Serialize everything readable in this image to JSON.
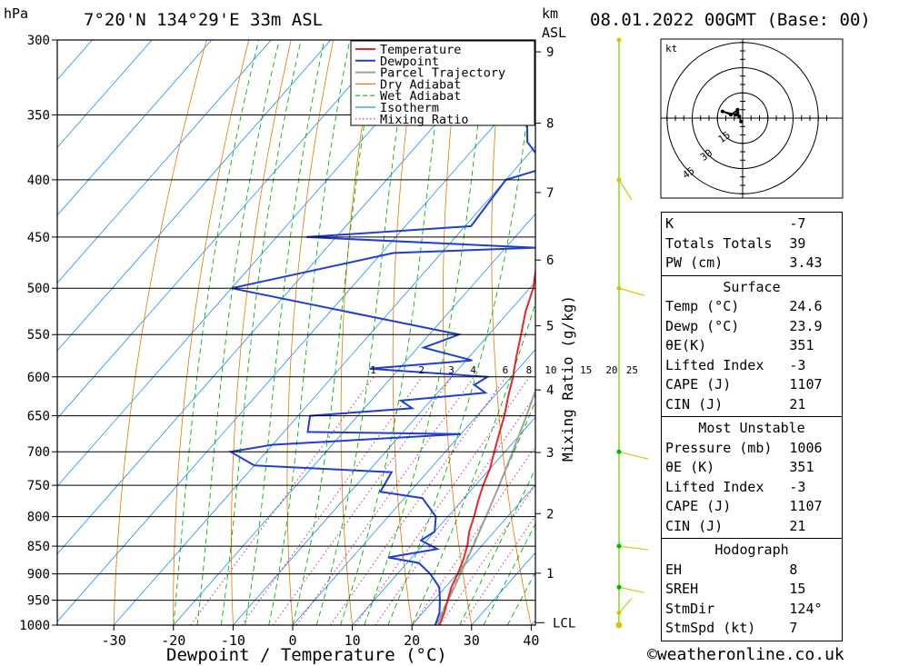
{
  "header": {
    "location": "7°20'N 134°29'E 33m ASL",
    "datetime": "08.01.2022 00GMT (Base: 00)",
    "pressure_unit": "hPa",
    "height_unit_1": "km",
    "height_unit_2": "ASL"
  },
  "chart_data": {
    "type": "skew-t",
    "xlabel": "Dewpoint / Temperature (°C)",
    "ylabel_right": "Mixing Ratio (g/kg)",
    "pressure_levels": [
      300,
      350,
      400,
      450,
      500,
      550,
      600,
      650,
      700,
      750,
      800,
      850,
      900,
      950,
      1000
    ],
    "temperature_ticks": [
      -30,
      -20,
      -10,
      0,
      10,
      20,
      30,
      40
    ],
    "height_ticks_km": [
      1,
      2,
      3,
      4,
      5,
      6,
      7,
      8,
      9
    ],
    "lcl_label": "LCL",
    "lcl_pressure": 995,
    "mixing_ratio_labels": [
      "1",
      "2",
      "3",
      "4",
      "6",
      "8",
      "10",
      "15",
      "20",
      "25"
    ],
    "mixing_ratio_values": [
      1,
      2,
      3,
      4,
      6,
      8,
      10,
      15,
      20,
      25
    ],
    "legend": [
      "Temperature",
      "Dewpoint",
      "Parcel Trajectory",
      "Dry Adiabat",
      "Wet Adiabat",
      "Isotherm",
      "Mixing Ratio"
    ],
    "legend_colors": [
      "#e8262b",
      "#1f3fd0",
      "#a0a0a0",
      "#e07b00",
      "#00b400",
      "#1e90e8",
      "#c8148c"
    ],
    "temperature_profile": [
      [
        1000,
        24.6
      ],
      [
        975,
        23.6
      ],
      [
        950,
        22.3
      ],
      [
        925,
        21.0
      ],
      [
        900,
        20.1
      ],
      [
        875,
        19.0
      ],
      [
        850,
        17.6
      ],
      [
        825,
        15.8
      ],
      [
        800,
        14.4
      ],
      [
        775,
        12.8
      ],
      [
        750,
        11.3
      ],
      [
        725,
        10.0
      ],
      [
        700,
        8.2
      ],
      [
        675,
        6.4
      ],
      [
        650,
        4.6
      ],
      [
        625,
        2.4
      ],
      [
        600,
        0.3
      ],
      [
        575,
        -2.2
      ],
      [
        550,
        -4.6
      ],
      [
        525,
        -7.2
      ],
      [
        500,
        -9.4
      ],
      [
        475,
        -12.5
      ],
      [
        450,
        -15.4
      ],
      [
        425,
        -19.0
      ],
      [
        400,
        -22.8
      ],
      [
        375,
        -27.4
      ],
      [
        350,
        -31.6
      ],
      [
        325,
        -37.0
      ],
      [
        300,
        -42.6
      ]
    ],
    "dewpoint_profile": [
      [
        1000,
        23.9
      ],
      [
        975,
        22.8
      ],
      [
        950,
        21.0
      ],
      [
        925,
        19.0
      ],
      [
        900,
        15.5
      ],
      [
        880,
        12.0
      ],
      [
        870,
        6.0
      ],
      [
        855,
        13.0
      ],
      [
        840,
        9.0
      ],
      [
        825,
        10.0
      ],
      [
        800,
        8.0
      ],
      [
        770,
        3.0
      ],
      [
        760,
        -5.0
      ],
      [
        730,
        -6.0
      ],
      [
        720,
        -30.0
      ],
      [
        700,
        -36.0
      ],
      [
        690,
        -30.0
      ],
      [
        675,
        0.0
      ],
      [
        672,
        -26.0
      ],
      [
        650,
        -28.0
      ],
      [
        640,
        -12.0
      ],
      [
        630,
        -15.0
      ],
      [
        620,
        -2.0
      ],
      [
        610,
        -5.0
      ],
      [
        600,
        -4.0
      ],
      [
        590,
        -25.0
      ],
      [
        580,
        -9.0
      ],
      [
        565,
        -19.0
      ],
      [
        550,
        -15.0
      ],
      [
        500,
        -60.0
      ],
      [
        465,
        -38.0
      ],
      [
        460,
        -15.0
      ],
      [
        450,
        -55.0
      ],
      [
        440,
        -29.0
      ],
      [
        400,
        -30.0
      ],
      [
        390,
        -25.0
      ],
      [
        370,
        -32.0
      ],
      [
        350,
        -36.0
      ],
      [
        340,
        -44.0
      ],
      [
        320,
        -51.0
      ],
      [
        300,
        -51.0
      ]
    ],
    "parcel_profile": [
      [
        1000,
        24.6
      ],
      [
        995,
        24.0
      ],
      [
        950,
        22.4
      ],
      [
        900,
        20.6
      ],
      [
        850,
        18.6
      ],
      [
        800,
        16.4
      ],
      [
        750,
        14.0
      ],
      [
        700,
        11.3
      ],
      [
        650,
        8.3
      ],
      [
        600,
        4.9
      ],
      [
        550,
        1.0
      ],
      [
        500,
        -3.5
      ],
      [
        450,
        -8.7
      ],
      [
        400,
        -14.7
      ],
      [
        350,
        -22.0
      ],
      [
        300,
        -30.7
      ]
    ],
    "surface_wind_marker_pressure": 1000
  },
  "indices": {
    "rows": [
      {
        "k": "K",
        "v": "-7"
      },
      {
        "k": "Totals Totals",
        "v": "39"
      },
      {
        "k": "PW (cm)",
        "v": "3.43"
      }
    ]
  },
  "surface": {
    "title": "Surface",
    "rows": [
      {
        "k": "Temp (°C)",
        "v": "24.6"
      },
      {
        "k": "Dewp (°C)",
        "v": "23.9"
      },
      {
        "k": "θE(K)",
        "v": "351"
      },
      {
        "k": "Lifted Index",
        "v": "-3"
      },
      {
        "k": "CAPE (J)",
        "v": "1107"
      },
      {
        "k": "CIN (J)",
        "v": "21"
      }
    ]
  },
  "most_unstable": {
    "title": "Most Unstable",
    "rows": [
      {
        "k": "Pressure (mb)",
        "v": "1006"
      },
      {
        "k": "θE (K)",
        "v": "351"
      },
      {
        "k": "Lifted Index",
        "v": "-3"
      },
      {
        "k": "CAPE (J)",
        "v": "1107"
      },
      {
        "k": "CIN (J)",
        "v": "21"
      }
    ]
  },
  "hodograph_table": {
    "title": "Hodograph",
    "rows": [
      {
        "k": "EH",
        "v": "8"
      },
      {
        "k": "SREH",
        "v": "15"
      },
      {
        "k": "StmDir",
        "v": "124°"
      },
      {
        "k": "StmSpd (kt)",
        "v": "7"
      }
    ]
  },
  "hodograph": {
    "unit": "kt",
    "ring_labels": [
      "15",
      "30",
      "45"
    ],
    "ring_values": [
      15,
      30,
      45
    ],
    "trace_uv_kt": [
      [
        -1,
        -2
      ],
      [
        -2,
        1
      ],
      [
        -3,
        3
      ],
      [
        -3,
        5
      ],
      [
        -7,
        2
      ],
      [
        -12,
        4
      ],
      [
        -4,
        2
      ]
    ]
  },
  "credit": "©weatheronline.co.uk"
}
